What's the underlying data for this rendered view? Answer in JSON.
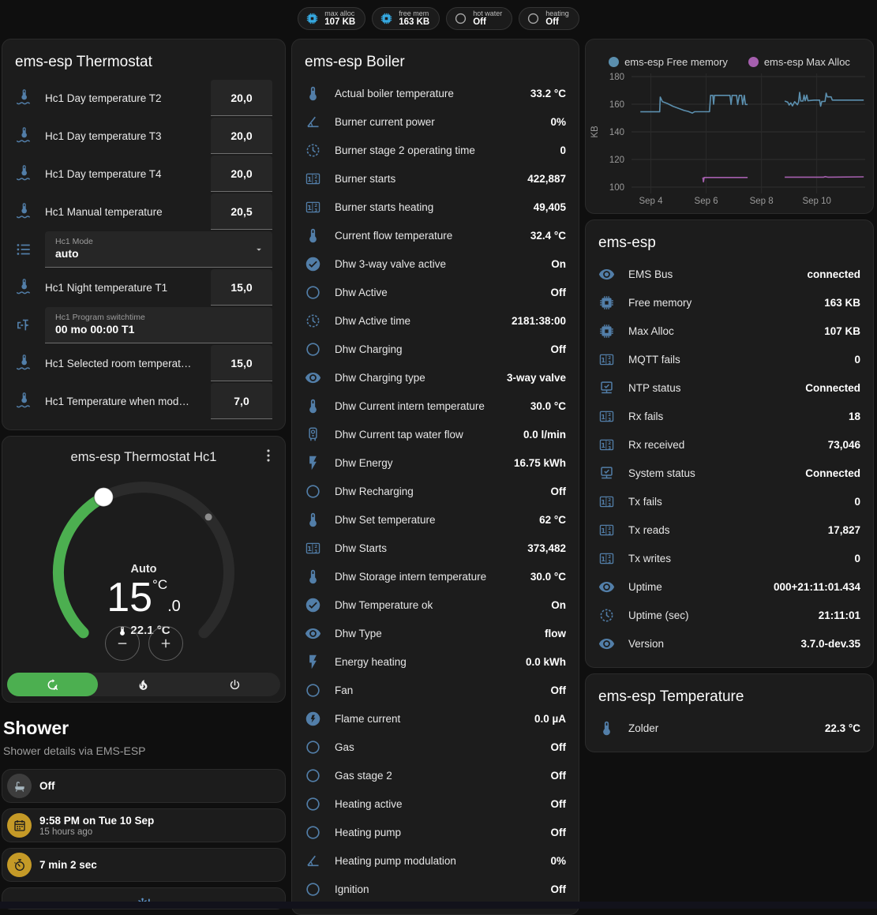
{
  "colors": {
    "accent_green": "#4caf50",
    "icon_blue": "#527ea8",
    "chip_blue": "#35a8e0",
    "chip_grey": "#a9a9a9",
    "amber": "#c59a27",
    "tile_grey_bg": "#3d3d3d",
    "tile_grey_fg": "#a7b6bf",
    "snowflake_blue": "#5f96cf",
    "chart_blue": "#5b8fae",
    "chart_purple": "#a55fae"
  },
  "top_chips": [
    {
      "icon": "chip",
      "color": "blue",
      "label": "max alloc",
      "value": "107 KB"
    },
    {
      "icon": "chip",
      "color": "blue",
      "label": "free mem",
      "value": "163 KB"
    },
    {
      "icon": "circle",
      "color": "grey",
      "label": "hot water",
      "value": "Off"
    },
    {
      "icon": "circle",
      "color": "grey",
      "label": "heating",
      "value": "Off"
    }
  ],
  "thermostat_card": {
    "title": "ems-esp Thermostat",
    "rows": [
      {
        "type": "number",
        "icon": "thermometer-water",
        "label": "Hc1 Day temperature T2",
        "value": "20,0"
      },
      {
        "type": "number",
        "icon": "thermometer-water",
        "label": "Hc1 Day temperature T3",
        "value": "20,0"
      },
      {
        "type": "number",
        "icon": "thermometer-water",
        "label": "Hc1 Day temperature T4",
        "value": "20,0"
      },
      {
        "type": "number",
        "icon": "thermometer-water",
        "label": "Hc1 Manual temperature",
        "value": "20,5"
      },
      {
        "type": "select",
        "icon": "list",
        "label": "Hc1 Mode",
        "value": "auto"
      },
      {
        "type": "number",
        "icon": "thermometer-water",
        "label": "Hc1 Night temperature T1",
        "value": "15,0"
      },
      {
        "type": "text",
        "icon": "valve",
        "label": "Hc1 Program switchtime",
        "value": "00 mo 00:00 T1"
      },
      {
        "type": "number",
        "icon": "thermometer-water",
        "label": "Hc1 Selected room temperat…",
        "value": "15,0"
      },
      {
        "type": "number",
        "icon": "thermometer-water",
        "label": "Hc1 Temperature when mod…",
        "value": "7,0"
      }
    ]
  },
  "climate_card": {
    "title": "ems-esp Thermostat Hc1",
    "mode_label": "Auto",
    "target_int": "15",
    "target_dec": ".0",
    "target_unit": "°C",
    "current_temp": "22.1 °C",
    "modes": [
      {
        "icon": "refresh-auto",
        "name": "auto",
        "active": true
      },
      {
        "icon": "fire",
        "name": "heat",
        "active": false
      },
      {
        "icon": "power",
        "name": "off",
        "active": false
      }
    ]
  },
  "shower": {
    "title": "Shower",
    "subtitle": "Shower details via EMS-ESP",
    "tiles": [
      {
        "icon": "bathtub",
        "style": "grey",
        "primary": "Off",
        "secondary": ""
      },
      {
        "icon": "calendar",
        "style": "amber",
        "primary": "9:58 PM on Tue 10 Sep",
        "secondary": "15 hours ago"
      },
      {
        "icon": "timer",
        "style": "amber",
        "primary": "7 min 2 sec",
        "secondary": ""
      }
    ],
    "partial_tile_icon": "snowflake-alert"
  },
  "boiler_card": {
    "title": "ems-esp Boiler",
    "rows": [
      {
        "icon": "thermometer",
        "label": "Actual boiler temperature",
        "value": "33.2 °C"
      },
      {
        "icon": "angle",
        "label": "Burner current power",
        "value": "0%"
      },
      {
        "icon": "clock",
        "label": "Burner stage 2 operating time",
        "value": "0"
      },
      {
        "icon": "counter",
        "label": "Burner starts",
        "value": "422,887"
      },
      {
        "icon": "counter",
        "label": "Burner starts heating",
        "value": "49,405"
      },
      {
        "icon": "thermometer",
        "label": "Current flow temperature",
        "value": "32.4 °C"
      },
      {
        "icon": "check-circle",
        "label": "Dhw 3-way valve active",
        "value": "On"
      },
      {
        "icon": "circle",
        "label": "Dhw Active",
        "value": "Off"
      },
      {
        "icon": "clock",
        "label": "Dhw Active time",
        "value": "2181:38:00"
      },
      {
        "icon": "circle",
        "label": "Dhw Charging",
        "value": "Off"
      },
      {
        "icon": "eye",
        "label": "Dhw Charging type",
        "value": "3-way valve"
      },
      {
        "icon": "thermometer",
        "label": "Dhw Current intern temperature",
        "value": "30.0 °C"
      },
      {
        "icon": "boiler",
        "label": "Dhw Current tap water flow",
        "value": "0.0 l/min"
      },
      {
        "icon": "flash",
        "label": "Dhw Energy",
        "value": "16.75 kWh"
      },
      {
        "icon": "circle",
        "label": "Dhw Recharging",
        "value": "Off"
      },
      {
        "icon": "thermometer",
        "label": "Dhw Set temperature",
        "value": "62 °C"
      },
      {
        "icon": "counter",
        "label": "Dhw Starts",
        "value": "373,482"
      },
      {
        "icon": "thermometer",
        "label": "Dhw Storage intern temperature",
        "value": "30.0 °C"
      },
      {
        "icon": "check-circle",
        "label": "Dhw Temperature ok",
        "value": "On"
      },
      {
        "icon": "eye",
        "label": "Dhw Type",
        "value": "flow"
      },
      {
        "icon": "flash",
        "label": "Energy heating",
        "value": "0.0 kWh"
      },
      {
        "icon": "circle",
        "label": "Fan",
        "value": "Off"
      },
      {
        "icon": "flash-circle",
        "label": "Flame current",
        "value": "0.0 µA"
      },
      {
        "icon": "circle",
        "label": "Gas",
        "value": "Off"
      },
      {
        "icon": "circle",
        "label": "Gas stage 2",
        "value": "Off"
      },
      {
        "icon": "circle",
        "label": "Heating active",
        "value": "Off"
      },
      {
        "icon": "circle",
        "label": "Heating pump",
        "value": "Off"
      },
      {
        "icon": "angle",
        "label": "Heating pump modulation",
        "value": "0%"
      },
      {
        "icon": "circle",
        "label": "Ignition",
        "value": "Off"
      }
    ]
  },
  "ems_card": {
    "title": "ems-esp",
    "rows": [
      {
        "icon": "eye",
        "label": "EMS Bus",
        "value": "connected"
      },
      {
        "icon": "chip",
        "label": "Free memory",
        "value": "163 KB"
      },
      {
        "icon": "chip",
        "label": "Max Alloc",
        "value": "107 KB"
      },
      {
        "icon": "counter",
        "label": "MQTT fails",
        "value": "0"
      },
      {
        "icon": "network",
        "label": "NTP status",
        "value": "Connected"
      },
      {
        "icon": "counter",
        "label": "Rx fails",
        "value": "18"
      },
      {
        "icon": "counter",
        "label": "Rx received",
        "value": "73,046"
      },
      {
        "icon": "network",
        "label": "System status",
        "value": "Connected"
      },
      {
        "icon": "counter",
        "label": "Tx fails",
        "value": "0"
      },
      {
        "icon": "counter",
        "label": "Tx reads",
        "value": "17,827"
      },
      {
        "icon": "counter",
        "label": "Tx writes",
        "value": "0"
      },
      {
        "icon": "eye",
        "label": "Uptime",
        "value": "000+21:11:01.434"
      },
      {
        "icon": "clock",
        "label": "Uptime (sec)",
        "value": "21:11:01"
      },
      {
        "icon": "eye",
        "label": "Version",
        "value": "3.7.0-dev.35"
      }
    ]
  },
  "temperature_card": {
    "title": "ems-esp Temperature",
    "rows": [
      {
        "icon": "thermometer",
        "label": "Zolder",
        "value": "22.3 °C"
      }
    ]
  },
  "chart_data": {
    "type": "line",
    "title": "",
    "xlabel": "",
    "ylabel": "KB",
    "ylim": [
      95,
      184
    ],
    "yticks": [
      100,
      120,
      140,
      160,
      180
    ],
    "xlim": [
      3.3,
      11.75
    ],
    "xticks": [
      {
        "x": 4,
        "label": "Sep 4"
      },
      {
        "x": 6,
        "label": "Sep 6"
      },
      {
        "x": 8,
        "label": "Sep 8"
      },
      {
        "x": 10,
        "label": "Sep 10"
      }
    ],
    "grid": true,
    "legend_position": "top",
    "series": [
      {
        "name": "ems-esp Free memory",
        "color": "#5b8fae",
        "segments": [
          [
            [
              3.62,
              154.5
            ],
            [
              4.32,
              154.5
            ],
            [
              4.34,
              165.2
            ],
            [
              4.42,
              161.8
            ],
            [
              4.6,
              160.5
            ],
            [
              4.8,
              158.5
            ],
            [
              5.0,
              157.0
            ],
            [
              5.2,
              155.5
            ],
            [
              5.35,
              154.8
            ],
            [
              5.5,
              153.6
            ],
            [
              5.58,
              154.6
            ],
            [
              6.12,
              154.6
            ],
            [
              6.16,
              166.4
            ],
            [
              6.24,
              166.4
            ],
            [
              6.27,
              160.0
            ],
            [
              6.3,
              166.4
            ],
            [
              6.86,
              166.4
            ],
            [
              6.9,
              159.8
            ],
            [
              6.94,
              166.4
            ],
            [
              7.1,
              166.4
            ],
            [
              7.14,
              159.8
            ],
            [
              7.2,
              166.4
            ],
            [
              7.28,
              166.4
            ],
            [
              7.32,
              159.8
            ],
            [
              7.38,
              166.4
            ],
            [
              7.42,
              159.8
            ],
            [
              7.5,
              159.8
            ]
          ],
          [
            [
              8.84,
              162.3
            ],
            [
              8.95,
              161.5
            ],
            [
              9.0,
              159.4
            ],
            [
              9.06,
              161.0
            ],
            [
              9.12,
              158.8
            ],
            [
              9.2,
              161.8
            ],
            [
              9.3,
              159.6
            ],
            [
              9.34,
              161.5
            ],
            [
              9.38,
              168.6
            ],
            [
              9.42,
              162.3
            ],
            [
              9.5,
              162.3
            ],
            [
              9.54,
              166.6
            ],
            [
              9.58,
              162.5
            ],
            [
              9.64,
              166.6
            ],
            [
              9.68,
              162.5
            ],
            [
              9.9,
              163.0
            ],
            [
              10.1,
              163.0
            ],
            [
              10.14,
              158.6
            ],
            [
              10.18,
              162.0
            ],
            [
              10.3,
              162.0
            ],
            [
              10.34,
              168.0
            ],
            [
              10.38,
              165.3
            ],
            [
              10.52,
              165.3
            ],
            [
              10.56,
              163.0
            ],
            [
              11.7,
              163.0
            ]
          ]
        ]
      },
      {
        "name": "ems-esp Max Alloc",
        "color": "#a55fae",
        "segments": [
          [
            [
              5.88,
              107.0
            ],
            [
              5.9,
              103.8
            ],
            [
              5.93,
              107.0
            ],
            [
              7.5,
              107.0
            ]
          ],
          [
            [
              8.84,
              107.2
            ],
            [
              10.25,
              107.2
            ],
            [
              10.3,
              107.6
            ],
            [
              10.4,
              107.2
            ],
            [
              11.7,
              107.4
            ]
          ]
        ]
      }
    ]
  }
}
